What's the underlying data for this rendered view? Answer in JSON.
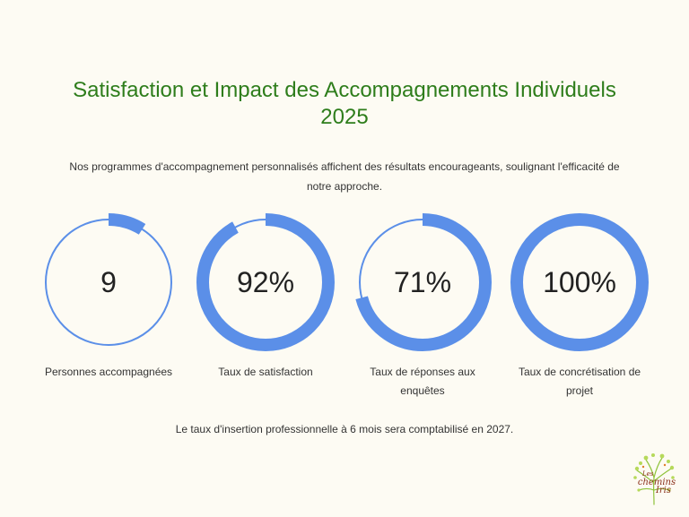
{
  "title_line1": "Satisfaction et Impact des Accompagnements Individuels",
  "title_line2": "2025",
  "intro_line1": "Nos programmes d'accompagnement personnalisés affichent des résultats encourageants, soulignant l'efficacité de",
  "intro_line2": "notre approche.",
  "metrics": [
    {
      "value": "9",
      "label_line1": "Personnes accompagnées",
      "label_line2": "",
      "fraction": 0.09
    },
    {
      "value": "92%",
      "label_line1": "Taux de satisfaction",
      "label_line2": "",
      "fraction": 0.92
    },
    {
      "value": "71%",
      "label_line1": "Taux de réponses aux",
      "label_line2": "enquêtes",
      "fraction": 0.71
    },
    {
      "value": "100%",
      "label_line1": "Taux de concrétisation de",
      "label_line2": "projet",
      "fraction": 1.0
    }
  ],
  "footnote": "Le taux d'insertion professionnelle à 6 mois sera comptabilisé en 2027.",
  "logo": {
    "line1": "Les",
    "line2": "chemins",
    "line3": "Iris"
  },
  "colors": {
    "accent": "#5b8fe8",
    "title": "#2e7d1b",
    "background": "#fdfbf3"
  }
}
